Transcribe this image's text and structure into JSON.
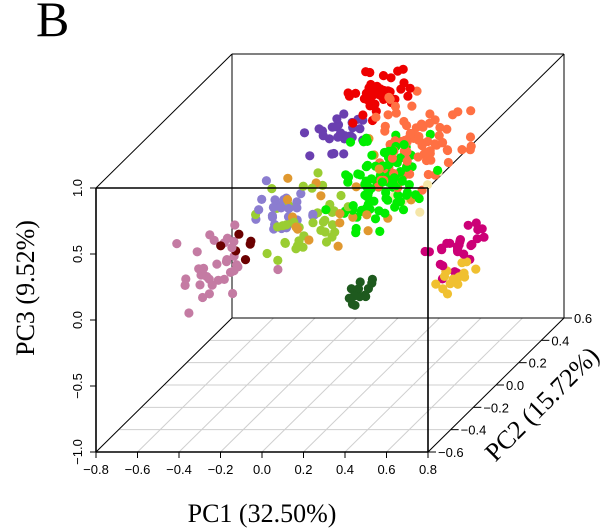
{
  "panel_label": "B",
  "chart_data": {
    "type": "scatter",
    "projection": "3d",
    "title": "",
    "xlabel": "PC1 (32.50%)",
    "ylabel": "PC2 (15.72%)",
    "zlabel": "PC3 (9.52%)",
    "xlim": [
      -0.8,
      0.8
    ],
    "ylim": [
      -0.6,
      0.6
    ],
    "zlim": [
      -1.0,
      1.0
    ],
    "x_ticks": [
      "−0.8",
      "−0.6",
      "−0.4",
      "−0.2",
      "0.0",
      "0.2",
      "0.4",
      "0.6",
      "0.8"
    ],
    "y_ticks": [
      "−0.6",
      "−0.4",
      "−0.2",
      "0.0",
      "0.2",
      "0.4",
      "0.6"
    ],
    "z_ticks": [
      "−1.0",
      "−0.5",
      "0.0",
      "0.5",
      "1.0"
    ],
    "grid": "floor",
    "box": true,
    "clusters": [
      {
        "color": "#c47ba3",
        "n": 34,
        "cx": -0.5,
        "cy": -0.05,
        "cz": -0.05,
        "sx": 0.09,
        "sy": 0.1,
        "sz": 0.12
      },
      {
        "color": "#8b7dd0",
        "n": 28,
        "cx": -0.22,
        "cy": 0.0,
        "cz": 0.35,
        "sx": 0.07,
        "sy": 0.08,
        "sz": 0.1
      },
      {
        "color": "#6a3fb0",
        "n": 26,
        "cx": -0.05,
        "cy": 0.15,
        "cz": 0.78,
        "sx": 0.05,
        "sy": 0.06,
        "sz": 0.08
      },
      {
        "color": "#9acd32",
        "n": 38,
        "cx": -0.08,
        "cy": -0.1,
        "cz": 0.3,
        "sx": 0.09,
        "sy": 0.1,
        "sz": 0.1
      },
      {
        "color": "#00ee00",
        "n": 95,
        "cx": 0.22,
        "cy": 0.05,
        "cz": 0.5,
        "sx": 0.12,
        "sy": 0.1,
        "sz": 0.14
      },
      {
        "color": "#ff7043",
        "n": 85,
        "cx": 0.35,
        "cy": 0.18,
        "cz": 0.65,
        "sx": 0.1,
        "sy": 0.1,
        "sz": 0.14
      },
      {
        "color": "#ee0000",
        "n": 40,
        "cx": 0.1,
        "cy": 0.22,
        "cz": 1.0,
        "sx": 0.06,
        "sy": 0.06,
        "sz": 0.08
      },
      {
        "color": "#e0982f",
        "n": 20,
        "cx": 0.02,
        "cy": -0.05,
        "cz": 0.4,
        "sx": 0.18,
        "sy": 0.12,
        "sz": 0.2
      },
      {
        "color": "#cc0077",
        "n": 28,
        "cx": 0.72,
        "cy": -0.2,
        "cz": 0.2,
        "sx": 0.05,
        "sy": 0.08,
        "sz": 0.08
      },
      {
        "color": "#f0c030",
        "n": 16,
        "cx": 0.74,
        "cy": -0.28,
        "cz": 0.05,
        "sx": 0.04,
        "sy": 0.06,
        "sz": 0.06
      },
      {
        "color": "#1e5a1e",
        "n": 14,
        "cx": 0.3,
        "cy": -0.3,
        "cz": -0.05,
        "sx": 0.03,
        "sy": 0.04,
        "sz": 0.06
      },
      {
        "color": "#6b0000",
        "n": 6,
        "cx": -0.4,
        "cy": -0.05,
        "cz": 0.05,
        "sx": 0.05,
        "sy": 0.05,
        "sz": 0.06
      },
      {
        "color": "#f5e6a8",
        "n": 6,
        "cx": 0.35,
        "cy": 0.2,
        "cz": 0.3,
        "sx": 0.1,
        "sy": 0.05,
        "sz": 0.1
      }
    ]
  }
}
